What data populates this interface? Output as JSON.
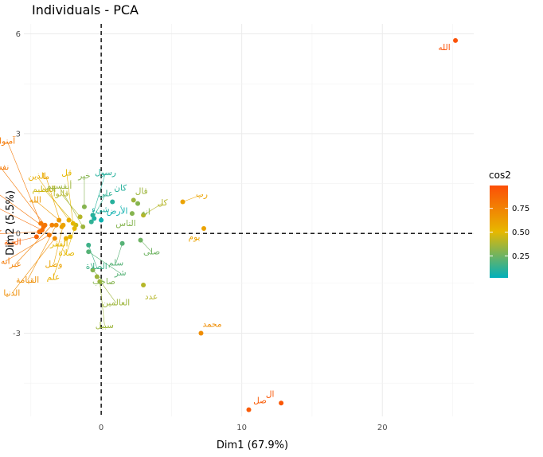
{
  "chart_data": {
    "type": "scatter",
    "title": "Individuals - PCA",
    "xlabel": "Dim1 (67.9%)",
    "ylabel": "Dim2 (5.5%)",
    "xlim": [
      -5.5,
      26.5
    ],
    "ylim": [
      -5.5,
      6.3
    ],
    "x_ticks": [
      0,
      10,
      20
    ],
    "x_tick_labels": [
      "0",
      "10",
      "20"
    ],
    "y_ticks": [
      -3,
      0,
      3,
      6
    ],
    "y_tick_labels": [
      "-3",
      "0",
      "3",
      "6"
    ],
    "grid": true,
    "reference_lines": {
      "x": 0,
      "y": 0,
      "style": "dashed"
    },
    "color_variable": "cos2",
    "legend": {
      "title": "cos2",
      "placement": "right",
      "range": [
        0.02,
        0.99
      ],
      "ticks": [
        0.25,
        0.5,
        0.75
      ],
      "tick_labels": [
        "0.25",
        "0.50",
        "0.75"
      ],
      "colors": [
        "#00AFBB",
        "#E7B800",
        "#FC4E07"
      ]
    },
    "points": [
      {
        "label": "الله",
        "x": 25.2,
        "y": 5.8,
        "cos2": 0.97
      },
      {
        "label": "ال",
        "x": 12.8,
        "y": -5.1,
        "cos2": 0.95
      },
      {
        "label": "صل",
        "x": 10.5,
        "y": -5.3,
        "cos2": 0.93
      },
      {
        "label": "محمد",
        "x": 7.1,
        "y": -3.0,
        "cos2": 0.7
      },
      {
        "label": "رب",
        "x": 5.8,
        "y": 0.95,
        "cos2": 0.6
      },
      {
        "label": "يوم",
        "x": 7.3,
        "y": 0.15,
        "cos2": 0.6
      },
      {
        "label": "كل",
        "x": 3.0,
        "y": 0.55,
        "cos2": 0.4
      },
      {
        "label": "قال",
        "x": 2.3,
        "y": 1.0,
        "cos2": 0.35
      },
      {
        "label": "انه",
        "x": 2.6,
        "y": 0.9,
        "cos2": 0.3
      },
      {
        "label": "الناس",
        "x": 2.2,
        "y": 0.6,
        "cos2": 0.3
      },
      {
        "label": "صلى",
        "x": 2.8,
        "y": -0.2,
        "cos2": 0.25
      },
      {
        "label": "سلم",
        "x": 1.5,
        "y": -0.3,
        "cos2": 0.2
      },
      {
        "label": "عدد",
        "x": 3.0,
        "y": -1.55,
        "cos2": 0.4
      },
      {
        "label": "كان",
        "x": 0.8,
        "y": 0.95,
        "cos2": 0.1
      },
      {
        "label": "الأرض",
        "x": 0.0,
        "y": 0.4,
        "cos2": 0.05
      },
      {
        "label": "شيء",
        "x": -0.5,
        "y": 0.45,
        "cos2": 0.08
      },
      {
        "label": "رسول",
        "x": -0.6,
        "y": 0.55,
        "cos2": 0.1
      },
      {
        "label": "علي",
        "x": -0.7,
        "y": 0.35,
        "cos2": 0.12
      },
      {
        "label": "خير",
        "x": -1.2,
        "y": 0.8,
        "cos2": 0.3
      },
      {
        "label": "قالوا",
        "x": -1.5,
        "y": 0.5,
        "cos2": 0.4
      },
      {
        "label": "العظيم",
        "x": -1.8,
        "y": 0.25,
        "cos2": 0.45
      },
      {
        "label": "قل",
        "x": -2.0,
        "y": 0.3,
        "cos2": 0.5
      },
      {
        "label": "الذين",
        "x": -2.3,
        "y": 0.4,
        "cos2": 0.55
      },
      {
        "label": "الصلاة",
        "x": -0.9,
        "y": -0.35,
        "cos2": 0.15
      },
      {
        "label": "صاحب",
        "x": -0.6,
        "y": -1.1,
        "cos2": 0.3
      },
      {
        "label": "شر",
        "x": -0.9,
        "y": -0.55,
        "cos2": 0.2
      },
      {
        "label": "سبيل",
        "x": -0.1,
        "y": -1.45,
        "cos2": 0.35
      },
      {
        "label": "العالمين",
        "x": -0.3,
        "y": -1.3,
        "cos2": 0.35
      },
      {
        "label": "ما",
        "x": -2.8,
        "y": 0.2,
        "cos2": 0.6
      },
      {
        "label": "آمنوا",
        "x": -4.3,
        "y": 0.3,
        "cos2": 0.8
      },
      {
        "label": "نفس",
        "x": -4.0,
        "y": 0.25,
        "cos2": 0.8
      },
      {
        "label": "انزل",
        "x": -4.1,
        "y": 0.2,
        "cos2": 0.82
      },
      {
        "label": "الله",
        "x": -3.0,
        "y": 0.4,
        "cos2": 0.65
      },
      {
        "label": "فعل",
        "x": -4.2,
        "y": 0.1,
        "cos2": 0.85
      },
      {
        "label": "كفروا",
        "x": -4.4,
        "y": 0.05,
        "cos2": 0.85
      },
      {
        "label": "الجنة",
        "x": -4.6,
        "y": -0.1,
        "cos2": 0.9
      },
      {
        "label": "انه",
        "x": -3.7,
        "y": -0.05,
        "cos2": 0.8
      },
      {
        "label": "عبر",
        "x": -3.5,
        "y": 0.25,
        "cos2": 0.75
      },
      {
        "label": "علم",
        "x": -2.5,
        "y": -0.15,
        "cos2": 0.55
      },
      {
        "label": "وصل",
        "x": -2.7,
        "y": 0.25,
        "cos2": 0.6
      },
      {
        "label": "القيامة",
        "x": -3.2,
        "y": 0.25,
        "cos2": 0.7
      },
      {
        "label": "الدنيا",
        "x": -3.3,
        "y": -0.15,
        "cos2": 0.7
      },
      {
        "label": "الفقر",
        "x": -2.2,
        "y": -0.1,
        "cos2": 0.5
      },
      {
        "label": "صلاة",
        "x": -1.9,
        "y": 0.15,
        "cos2": 0.5
      },
      {
        "label": "أنفسهم",
        "x": -1.3,
        "y": 0.2,
        "cos2": 0.35
      }
    ]
  }
}
